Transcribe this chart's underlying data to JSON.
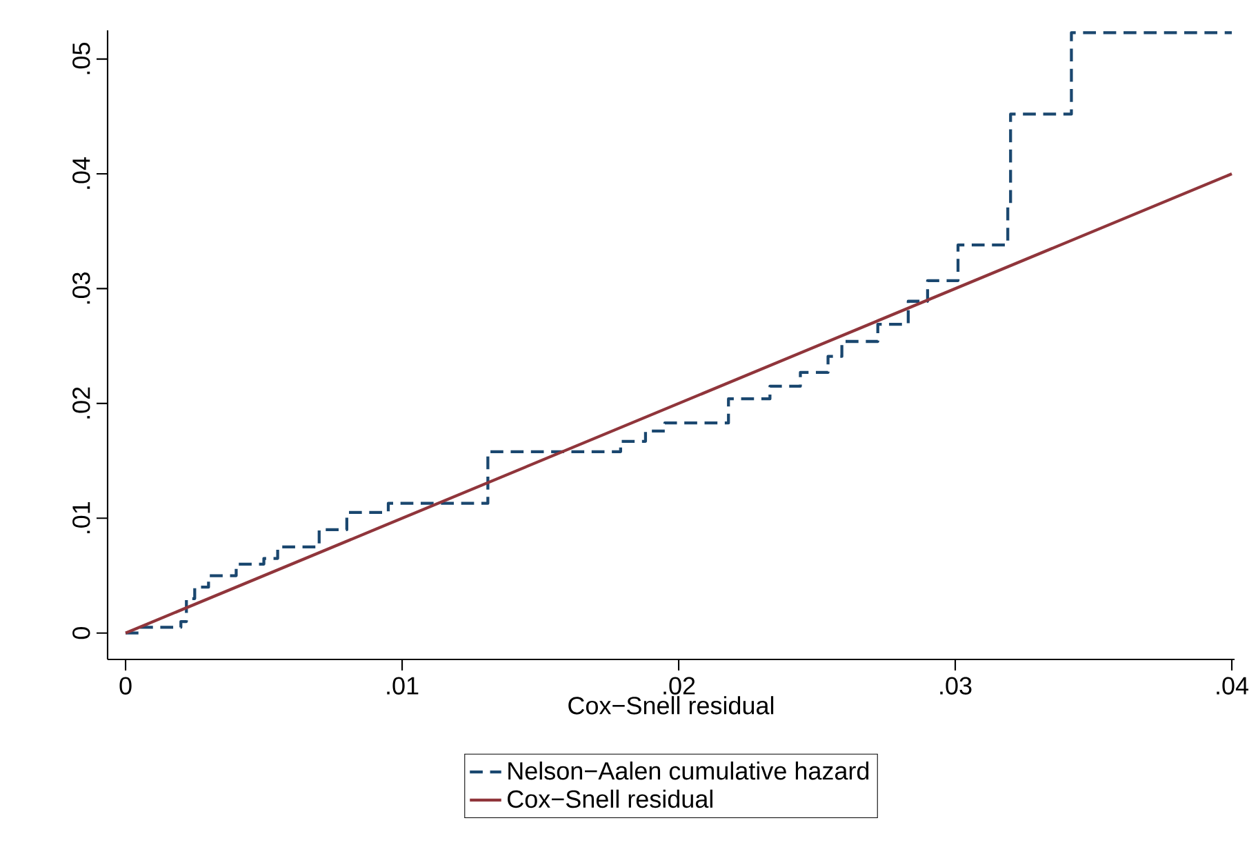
{
  "chart_data": {
    "type": "line",
    "xlabel": "Cox−Snell residual",
    "xlim": [
      -0.00065,
      0.0401
    ],
    "ylim": [
      -0.0023,
      0.0525
    ],
    "xticks": [
      0,
      {
        "value": 0.01,
        "label": ".01"
      },
      {
        "value": 0.02,
        "label": ".02"
      },
      {
        "value": 0.03,
        "label": ".03"
      },
      {
        "value": 0.04,
        "label": ".04"
      }
    ],
    "yticks": [
      0,
      {
        "value": 0.01,
        "label": ".01"
      },
      {
        "value": 0.02,
        "label": ".02"
      },
      {
        "value": 0.03,
        "label": ".03"
      },
      {
        "value": 0.04,
        "label": ".04"
      },
      {
        "value": 0.05,
        "label": ".05"
      }
    ],
    "grid": false,
    "legend": "bottom",
    "marker": "none",
    "series": [
      {
        "name": "Nelson−Aalen cumulative hazard",
        "type": "step",
        "line_style": "dashed",
        "color": "#1a476f",
        "x": [
          0,
          0.0005,
          0.002,
          0.0022,
          0.0025,
          0.003,
          0.004,
          0.005,
          0.0055,
          0.007,
          0.008,
          0.0095,
          0.0131,
          0.0179,
          0.0188,
          0.0195,
          0.0218,
          0.0233,
          0.0244,
          0.0254,
          0.0259,
          0.0272,
          0.0283,
          0.029,
          0.0301,
          0.0319,
          0.032,
          0.0342,
          0.04
        ],
        "values": [
          0,
          0.0005,
          0.001,
          0.003,
          0.004,
          0.005,
          0.006,
          0.0065,
          0.0075,
          0.009,
          0.0105,
          0.0113,
          0.0158,
          0.0167,
          0.0176,
          0.0183,
          0.0204,
          0.0215,
          0.0227,
          0.0241,
          0.0254,
          0.0269,
          0.0289,
          0.0307,
          0.0338,
          0.0374,
          0.0452,
          0.0523,
          0.0523
        ]
      },
      {
        "name": "Cox−Snell residual",
        "line_style": "solid",
        "color": "#90353b",
        "x": [
          0,
          0.04
        ],
        "values": [
          0,
          0.04
        ]
      }
    ]
  }
}
